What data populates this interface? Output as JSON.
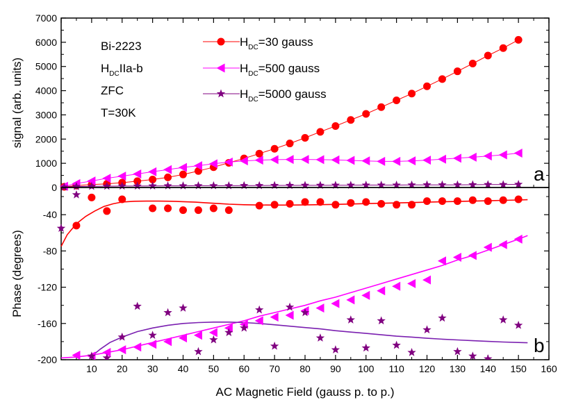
{
  "colors": {
    "series1": "#ff0000",
    "series2": "#ff00ff",
    "series3": "#800080",
    "fit3": "#7a1fb0"
  },
  "chart_data": [
    {
      "type": "line",
      "panel_label": "a",
      "xlim": [
        0,
        160
      ],
      "ylim": [
        0,
        7000
      ],
      "xticks": [],
      "yticks": [
        "0",
        "1000",
        "2000",
        "3000",
        "4000",
        "5000",
        "6000",
        "7000"
      ],
      "ylabel": "signal (arb. units)",
      "annotations": [
        "Bi-2223",
        "H",
        "DC",
        "IIa-b",
        "ZFC",
        "T=30K"
      ],
      "legend": [
        {
          "prefix": "H",
          "sub": "DC",
          "suffix": "=30  gauss",
          "marker": "circle",
          "color": "#ff0000"
        },
        {
          "prefix": "H",
          "sub": "DC",
          "suffix": "=500  gauss",
          "marker": "triangle-left",
          "color": "#ff00ff"
        },
        {
          "prefix": "H",
          "sub": "DC",
          "suffix": "=5000  gauss",
          "marker": "star",
          "color": "#800080"
        }
      ],
      "series": [
        {
          "marker": "circle",
          "color": "#ff0000",
          "x": [
            1,
            5,
            10,
            15,
            20,
            25,
            30,
            35,
            40,
            45,
            50,
            55,
            60,
            65,
            70,
            75,
            80,
            85,
            90,
            95,
            100,
            105,
            110,
            115,
            120,
            125,
            130,
            135,
            140,
            145,
            150
          ],
          "y": [
            30,
            80,
            120,
            150,
            200,
            260,
            330,
            420,
            540,
            680,
            840,
            1020,
            1200,
            1400,
            1600,
            1820,
            2050,
            2300,
            2540,
            2790,
            3040,
            3320,
            3600,
            3880,
            4180,
            4480,
            4800,
            5120,
            5450,
            5760,
            6100
          ]
        },
        {
          "marker": "triangle-left",
          "color": "#ff00ff",
          "x": [
            1,
            5,
            10,
            15,
            20,
            25,
            30,
            35,
            40,
            45,
            50,
            55,
            60,
            65,
            70,
            75,
            80,
            85,
            90,
            95,
            100,
            105,
            110,
            115,
            120,
            125,
            130,
            135,
            140,
            145,
            150
          ],
          "y": [
            50,
            160,
            270,
            380,
            470,
            560,
            650,
            740,
            830,
            900,
            980,
            1050,
            1100,
            1130,
            1150,
            1160,
            1160,
            1150,
            1140,
            1120,
            1100,
            1080,
            1080,
            1100,
            1130,
            1170,
            1210,
            1250,
            1300,
            1350,
            1420
          ]
        },
        {
          "marker": "star",
          "color": "#800080",
          "x": [
            1,
            5,
            10,
            15,
            20,
            25,
            30,
            35,
            40,
            45,
            50,
            55,
            60,
            65,
            70,
            75,
            80,
            85,
            90,
            95,
            100,
            105,
            110,
            115,
            120,
            125,
            130,
            135,
            140,
            145,
            150
          ],
          "y": [
            20,
            40,
            50,
            55,
            60,
            60,
            65,
            70,
            70,
            75,
            75,
            75,
            80,
            80,
            85,
            85,
            90,
            90,
            95,
            95,
            100,
            100,
            100,
            105,
            110,
            110,
            110,
            115,
            120,
            120,
            130
          ]
        }
      ]
    },
    {
      "type": "scatter",
      "panel_label": "b",
      "xlim": [
        0,
        160
      ],
      "ylim": [
        -200,
        -10
      ],
      "xticks": [
        "10",
        "20",
        "30",
        "40",
        "50",
        "60",
        "70",
        "80",
        "90",
        "100",
        "110",
        "120",
        "130",
        "140",
        "150",
        "160"
      ],
      "yticks": [
        "-200",
        "-160",
        "-120",
        "-80",
        "-40"
      ],
      "xlabel": "AC Magnetic Field (gauss p. to p.)",
      "ylabel": "Phase (degrees)",
      "series": [
        {
          "marker": "circle",
          "color": "#ff0000",
          "x": [
            5,
            10,
            15,
            20,
            30,
            35,
            40,
            45,
            50,
            55,
            65,
            70,
            75,
            80,
            85,
            90,
            95,
            100,
            105,
            110,
            115,
            120,
            125,
            130,
            135,
            140,
            145,
            150
          ],
          "y": [
            -52,
            -21,
            -36,
            -23,
            -33,
            -33,
            -35,
            -35,
            -33,
            -35,
            -30,
            -29,
            -28,
            -26,
            -26,
            -29,
            -27,
            -26,
            -28,
            -29,
            -29,
            -25,
            -25,
            -25,
            -24,
            -25,
            -24,
            -23
          ]
        },
        {
          "marker": "triangle-left",
          "color": "#ff00ff",
          "x": [
            5,
            10,
            15,
            20,
            25,
            30,
            35,
            40,
            45,
            50,
            55,
            60,
            65,
            70,
            75,
            80,
            85,
            90,
            95,
            100,
            105,
            110,
            115,
            120,
            125,
            130,
            135,
            140,
            145,
            150
          ],
          "y": [
            -195,
            -196,
            -192,
            -189,
            -186,
            -183,
            -180,
            -176,
            -173,
            -170,
            -165,
            -161,
            -157,
            -153,
            -151,
            -146,
            -143,
            -138,
            -134,
            -129,
            -124,
            -119,
            -116,
            -112,
            -91,
            -87,
            -85,
            -76,
            -73,
            -67
          ]
        },
        {
          "marker": "star",
          "color": "#800080",
          "x": [
            0,
            5,
            10,
            15,
            20,
            25,
            30,
            35,
            40,
            45,
            50,
            55,
            60,
            65,
            70,
            75,
            80,
            85,
            90,
            95,
            100,
            105,
            110,
            115,
            120,
            125,
            130,
            135,
            140,
            145,
            150
          ],
          "y": [
            -55,
            -18,
            -196,
            -198,
            -175,
            -141,
            -173,
            -148,
            -143,
            -191,
            -178,
            -170,
            -165,
            -145,
            -185,
            -142,
            -148,
            -176,
            -189,
            -156,
            -187,
            -157,
            -184,
            -192,
            -167,
            -154,
            -191,
            -196,
            -199,
            -156,
            -162
          ]
        }
      ],
      "fits": [
        {
          "color": "#ff0000",
          "x": [
            0,
            2,
            5,
            8,
            11,
            14,
            17,
            20,
            24,
            28,
            32,
            36,
            40,
            44,
            48,
            52,
            55,
            60,
            65,
            70,
            75,
            80,
            85,
            90,
            95,
            100,
            105,
            110,
            115,
            120,
            125,
            130,
            135,
            140,
            145,
            150,
            153
          ],
          "y": [
            -75,
            -62,
            -50,
            -42,
            -36,
            -31,
            -28,
            -26,
            -25.2,
            -25,
            -25,
            -25.2,
            -25.6,
            -26.2,
            -27,
            -27.8,
            -28.4,
            -29,
            -29.3,
            -29.4,
            -29.4,
            -29.2,
            -28.9,
            -28.6,
            -28.2,
            -27.8,
            -27.4,
            -27,
            -26.6,
            -26.2,
            -25.8,
            -25.4,
            -25,
            -24.6,
            -24.2,
            -23.8,
            -23.5
          ]
        },
        {
          "color": "#ff00ff",
          "x": [
            0,
            5,
            10,
            15,
            20,
            25,
            30,
            35,
            40,
            45,
            50,
            55,
            60,
            65,
            70,
            75,
            80,
            85,
            90,
            95,
            100,
            105,
            110,
            115,
            120,
            125,
            130,
            135,
            140,
            145,
            150,
            153
          ],
          "y": [
            -198,
            -197,
            -195,
            -192,
            -189,
            -185,
            -181,
            -177,
            -173,
            -169,
            -165,
            -161,
            -157,
            -152,
            -148,
            -144,
            -140,
            -135,
            -131,
            -126,
            -121,
            -116,
            -111,
            -106,
            -101,
            -96,
            -90,
            -85,
            -79,
            -73,
            -67,
            -63
          ]
        },
        {
          "color": "#7a1fb0",
          "x": [
            10,
            13,
            16,
            20,
            25,
            30,
            35,
            40,
            45,
            50,
            55,
            60,
            65,
            70,
            75,
            80,
            85,
            90,
            95,
            100,
            105,
            110,
            115,
            120,
            125,
            130,
            135,
            140,
            145,
            150,
            153
          ],
          "y": [
            -196,
            -188,
            -181,
            -175,
            -169,
            -165,
            -162,
            -160,
            -159,
            -158.5,
            -158.5,
            -159,
            -160,
            -161.5,
            -163,
            -164.5,
            -166,
            -168,
            -169.5,
            -171,
            -172.5,
            -174,
            -175,
            -176.3,
            -177.3,
            -178.2,
            -179,
            -179.8,
            -180.5,
            -181,
            -181.3
          ]
        }
      ]
    }
  ]
}
